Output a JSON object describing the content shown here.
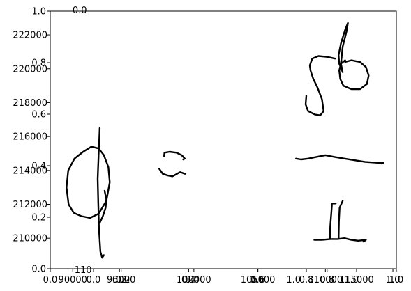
{
  "chart_data": {
    "type": "line",
    "title": "",
    "xlabel": "",
    "ylabel": "",
    "grid": false,
    "colors": {
      "ink": "#000000",
      "frame": "#000000",
      "background": "#ffffff"
    },
    "overlay_axes": {
      "xlim": [
        0,
        1
      ],
      "ylim": [
        0,
        1
      ],
      "x_ticks": [
        "0.0",
        "0.2",
        "0.4",
        "0.6",
        "0.8",
        "1.0"
      ],
      "y_ticks": [
        "0.0",
        "0.2",
        "0.4",
        "0.6",
        "0.8",
        "1.0"
      ],
      "top_label": "0.0"
    },
    "data_axis": {
      "ylim": [
        208200,
        223400
      ],
      "y_ticks": [
        {
          "v": 210000,
          "label": "210000"
        },
        {
          "v": 212000,
          "label": "212000"
        },
        {
          "v": 214000,
          "label": "214000"
        },
        {
          "v": 216000,
          "label": "216000"
        },
        {
          "v": 218000,
          "label": "218000"
        },
        {
          "v": 220000,
          "label": "220000"
        },
        {
          "v": 222000,
          "label": "222000"
        }
      ],
      "x_ticks": [
        {
          "f": 0.065,
          "label": "90000"
        },
        {
          "f": 0.125,
          "label": "0.0"
        },
        {
          "f": 0.205,
          "label": "95000"
        },
        {
          "f": 0.415,
          "label": "100000"
        },
        {
          "f": 0.6,
          "label": "105000"
        },
        {
          "f": 0.74,
          "label": "0.8"
        },
        {
          "f": 0.795,
          "label": "110000"
        },
        {
          "f": 0.885,
          "label": "115000"
        },
        {
          "f": 0.99,
          "label": "1.0"
        }
      ],
      "extra_labels": [
        {
          "f": 0.095,
          "label": "110"
        },
        {
          "f": 0.21,
          "label": "0.2"
        },
        {
          "f": 0.41,
          "label": "0.4"
        },
        {
          "f": 0.597,
          "label": "0.6"
        },
        {
          "f": 0.703,
          "label": "1.0"
        },
        {
          "f": 0.87,
          "label": "1.0"
        }
      ]
    },
    "series": [
      {
        "points": [
          [
            0.143,
            216500
          ],
          [
            0.14,
            215000
          ],
          [
            0.137,
            213500
          ],
          [
            0.139,
            212000
          ],
          [
            0.141,
            210500
          ],
          [
            0.145,
            209200
          ],
          [
            0.15,
            208850
          ],
          [
            0.155,
            209000
          ]
        ]
      },
      {
        "points": [
          [
            0.119,
            215400
          ],
          [
            0.095,
            215100
          ],
          [
            0.07,
            214700
          ],
          [
            0.052,
            214000
          ],
          [
            0.047,
            213000
          ],
          [
            0.053,
            212000
          ],
          [
            0.068,
            211500
          ],
          [
            0.09,
            211300
          ],
          [
            0.115,
            211200
          ],
          [
            0.14,
            211450
          ],
          [
            0.162,
            212200
          ],
          [
            0.172,
            213300
          ],
          [
            0.168,
            214200
          ],
          [
            0.155,
            214900
          ],
          [
            0.14,
            215300
          ],
          [
            0.119,
            215400
          ]
        ]
      },
      {
        "points": [
          [
            0.157,
            212800
          ],
          [
            0.162,
            212300
          ],
          [
            0.16,
            211800
          ],
          [
            0.152,
            211300
          ],
          [
            0.143,
            210900
          ]
        ]
      },
      {
        "points": [
          [
            0.329,
            214850
          ],
          [
            0.33,
            215050
          ],
          [
            0.345,
            215100
          ],
          [
            0.365,
            215050
          ],
          [
            0.38,
            214900
          ],
          [
            0.389,
            214700
          ],
          [
            0.384,
            214650
          ]
        ]
      },
      {
        "points": [
          [
            0.315,
            214100
          ],
          [
            0.325,
            213800
          ],
          [
            0.34,
            213700
          ],
          [
            0.353,
            213650
          ],
          [
            0.375,
            213900
          ],
          [
            0.39,
            213800
          ]
        ]
      },
      {
        "points": [
          [
            0.74,
            218400
          ],
          [
            0.738,
            217900
          ],
          [
            0.745,
            217500
          ],
          [
            0.765,
            217300
          ],
          [
            0.78,
            217250
          ],
          [
            0.79,
            217500
          ],
          [
            0.785,
            218200
          ],
          [
            0.772,
            218900
          ],
          [
            0.76,
            219400
          ],
          [
            0.752,
            219900
          ],
          [
            0.75,
            220200
          ],
          [
            0.757,
            220600
          ],
          [
            0.775,
            220750
          ],
          [
            0.8,
            220700
          ],
          [
            0.823,
            220600
          ]
        ]
      },
      {
        "points": [
          [
            0.845,
            219800
          ],
          [
            0.835,
            220300
          ],
          [
            0.833,
            220800
          ],
          [
            0.84,
            221500
          ],
          [
            0.852,
            222300
          ],
          [
            0.86,
            222700
          ],
          [
            0.856,
            222200
          ],
          [
            0.845,
            221300
          ],
          [
            0.84,
            220300
          ],
          [
            0.845,
            219800
          ]
        ]
      },
      {
        "points": [
          [
            0.852,
            220400
          ],
          [
            0.87,
            220500
          ],
          [
            0.895,
            220400
          ],
          [
            0.912,
            220100
          ],
          [
            0.92,
            219600
          ],
          [
            0.915,
            219100
          ],
          [
            0.895,
            218800
          ],
          [
            0.87,
            218800
          ],
          [
            0.847,
            219000
          ],
          [
            0.838,
            219400
          ],
          [
            0.835,
            219900
          ],
          [
            0.84,
            220300
          ],
          [
            0.852,
            220500
          ]
        ]
      },
      {
        "points": [
          [
            0.71,
            214700
          ],
          [
            0.725,
            214650
          ],
          [
            0.745,
            214700
          ],
          [
            0.77,
            214800
          ],
          [
            0.795,
            214900
          ],
          [
            0.82,
            214800
          ],
          [
            0.85,
            214700
          ],
          [
            0.88,
            214600
          ],
          [
            0.91,
            214500
          ],
          [
            0.95,
            214450
          ],
          [
            0.963,
            214450
          ],
          [
            0.958,
            214400
          ]
        ]
      },
      {
        "points": [
          [
            0.763,
            209900
          ],
          [
            0.785,
            209900
          ],
          [
            0.81,
            209950
          ],
          [
            0.83,
            209950
          ],
          [
            0.85,
            210000
          ],
          [
            0.87,
            209900
          ],
          [
            0.89,
            209850
          ],
          [
            0.912,
            209900
          ],
          [
            0.905,
            209800
          ]
        ]
      },
      {
        "points": [
          [
            0.814,
            212000
          ],
          [
            0.812,
            211500
          ],
          [
            0.809,
            210700
          ],
          [
            0.808,
            210000
          ]
        ]
      },
      {
        "points": [
          [
            0.815,
            212050
          ],
          [
            0.825,
            212050
          ]
        ]
      },
      {
        "points": [
          [
            0.845,
            212200
          ],
          [
            0.836,
            211800
          ],
          [
            0.834,
            211000
          ],
          [
            0.833,
            210000
          ]
        ]
      }
    ]
  }
}
